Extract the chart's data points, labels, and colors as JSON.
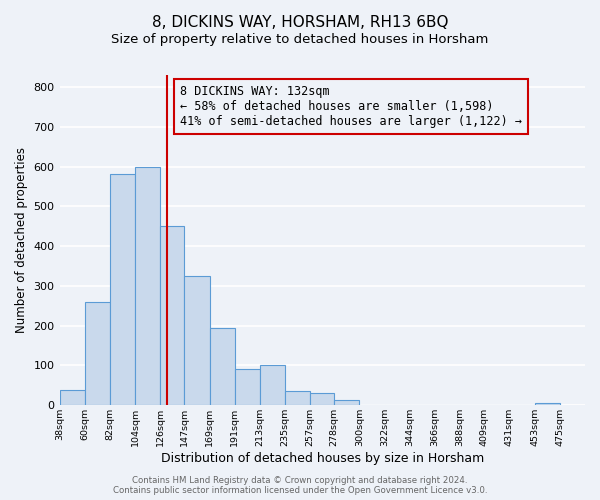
{
  "title": "8, DICKINS WAY, HORSHAM, RH13 6BQ",
  "subtitle": "Size of property relative to detached houses in Horsham",
  "xlabel": "Distribution of detached houses by size in Horsham",
  "ylabel": "Number of detached properties",
  "bar_left_edges": [
    38,
    60,
    82,
    104,
    126,
    147,
    169,
    191,
    213,
    235,
    257,
    278,
    300,
    322,
    344,
    366,
    388,
    409,
    431,
    453
  ],
  "bar_heights": [
    38,
    260,
    580,
    600,
    450,
    325,
    195,
    90,
    100,
    37,
    32,
    14,
    0,
    0,
    0,
    0,
    0,
    0,
    0,
    7
  ],
  "bar_widths": [
    22,
    22,
    22,
    22,
    21,
    22,
    22,
    22,
    22,
    22,
    21,
    22,
    22,
    22,
    22,
    22,
    21,
    22,
    22,
    22
  ],
  "bar_color": "#c9d9ec",
  "bar_edge_color": "#5b9bd5",
  "tick_labels": [
    "38sqm",
    "60sqm",
    "82sqm",
    "104sqm",
    "126sqm",
    "147sqm",
    "169sqm",
    "191sqm",
    "213sqm",
    "235sqm",
    "257sqm",
    "278sqm",
    "300sqm",
    "322sqm",
    "344sqm",
    "366sqm",
    "388sqm",
    "409sqm",
    "431sqm",
    "453sqm",
    "475sqm"
  ],
  "ylim": [
    0,
    830
  ],
  "xlim": [
    38,
    497
  ],
  "vline_x": 132,
  "vline_color": "#cc0000",
  "annotation_text": "8 DICKINS WAY: 132sqm\n← 58% of detached houses are smaller (1,598)\n41% of semi-detached houses are larger (1,122) →",
  "annotation_box_edge": "#cc0000",
  "annotation_fontsize": 8.5,
  "title_fontsize": 11,
  "subtitle_fontsize": 9.5,
  "xlabel_fontsize": 9,
  "ylabel_fontsize": 8.5,
  "footer_line1": "Contains HM Land Registry data © Crown copyright and database right 2024.",
  "footer_line2": "Contains public sector information licensed under the Open Government Licence v3.0.",
  "background_color": "#eef2f8",
  "plot_bg_color": "#eef2f8",
  "grid_color": "#ffffff",
  "yticks": [
    0,
    100,
    200,
    300,
    400,
    500,
    600,
    700,
    800
  ]
}
